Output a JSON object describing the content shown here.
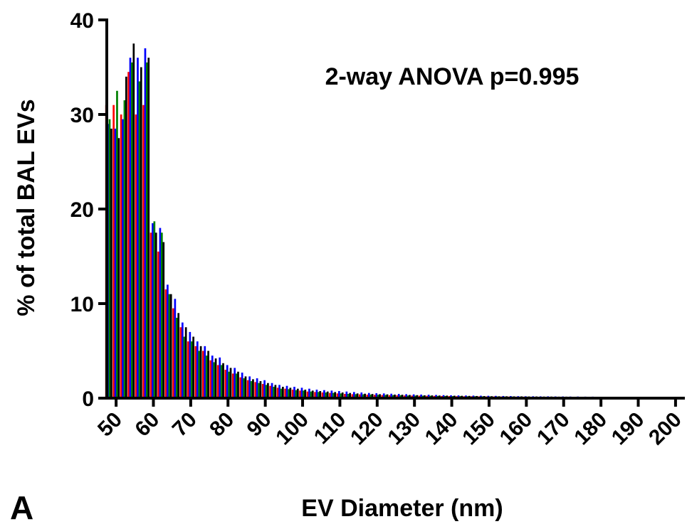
{
  "panel_label": "A",
  "chart_data": {
    "type": "bar",
    "title": "",
    "annotation": "2-way ANOVA p=0.995",
    "xlabel": "EV Diameter (nm)",
    "ylabel": "% of total BAL EVs",
    "ylim": [
      0,
      40
    ],
    "yticks": [
      0,
      10,
      20,
      30,
      40
    ],
    "xlim": [
      47.5,
      202.5
    ],
    "xticks": [
      50,
      60,
      70,
      80,
      90,
      100,
      110,
      120,
      130,
      140,
      150,
      160,
      170,
      180,
      190,
      200
    ],
    "x": [
      48,
      50,
      52,
      54,
      56,
      58,
      60,
      62,
      64,
      66,
      68,
      70,
      72,
      74,
      76,
      78,
      80,
      82,
      84,
      86,
      88,
      90,
      92,
      94,
      96,
      98,
      100,
      102,
      104,
      106,
      108,
      110,
      112,
      114,
      116,
      118,
      120,
      122,
      124,
      126,
      128,
      130,
      132,
      134,
      136,
      138,
      140,
      142,
      144,
      146,
      148,
      150,
      152,
      154,
      156,
      158,
      160,
      162,
      164,
      166,
      168,
      170,
      172,
      174,
      176,
      178,
      180,
      182,
      184,
      186,
      188,
      190,
      192,
      194,
      196,
      198,
      200
    ],
    "series_colors": [
      "#ff0000",
      "#0000ff",
      "#008000",
      "#000000"
    ],
    "series": [
      {
        "color": "#ff0000",
        "values": [
          31,
          31,
          30,
          34.5,
          30,
          31,
          17.5,
          15.5,
          11.5,
          9.5,
          7.5,
          6,
          5.5,
          5,
          4,
          3.5,
          3,
          2.6,
          2.2,
          1.9,
          1.7,
          1.5,
          1.3,
          1.1,
          1.0,
          0.9,
          0.8,
          0.7,
          0.65,
          0.6,
          0.55,
          0.5,
          0.45,
          0.42,
          0.4,
          0.37,
          0.35,
          0.33,
          0.31,
          0.3,
          0.28,
          0.27,
          0.26,
          0.25,
          0.24,
          0.23,
          0.22,
          0.21,
          0.2,
          0.2,
          0.19,
          0.18,
          0.18,
          0.17,
          0.17,
          0.16,
          0.16,
          0.15,
          0.15,
          0.14,
          0.14,
          0.14,
          0.13,
          0.13,
          0.13,
          0.12,
          0.12,
          0.12,
          0.11,
          0.11,
          0.11,
          0.1,
          0.1,
          0.1,
          0.1,
          0.1,
          0.1
        ]
      },
      {
        "color": "#0000ff",
        "values": [
          29,
          28.5,
          29.5,
          36,
          36,
          37,
          18.5,
          18,
          12,
          10.5,
          8,
          7,
          6,
          5.5,
          4.5,
          4.3,
          3.5,
          3.2,
          2.7,
          2.3,
          2.1,
          1.9,
          1.6,
          1.4,
          1.3,
          1.2,
          1.1,
          1.0,
          0.9,
          0.85,
          0.8,
          0.75,
          0.7,
          0.65,
          0.6,
          0.55,
          0.52,
          0.5,
          0.47,
          0.45,
          0.42,
          0.4,
          0.38,
          0.36,
          0.34,
          0.32,
          0.3,
          0.29,
          0.28,
          0.27,
          0.26,
          0.25,
          0.24,
          0.23,
          0.22,
          0.21,
          0.2,
          0.2,
          0.19,
          0.19,
          0.18,
          0.18,
          0.17,
          0.17,
          0.16,
          0.16,
          0.15,
          0.15,
          0.14,
          0.14,
          0.13,
          0.13,
          0.12,
          0.12,
          0.12,
          0.11,
          0.11
        ]
      },
      {
        "color": "#008000",
        "values": [
          29.5,
          32.5,
          31.5,
          35.5,
          33.5,
          35.5,
          18.7,
          17.5,
          11,
          8.5,
          6.5,
          6,
          5,
          4.5,
          3.8,
          3.5,
          2.8,
          2.6,
          2.1,
          1.8,
          1.6,
          1.4,
          1.2,
          1.0,
          0.95,
          0.85,
          0.8,
          0.7,
          0.65,
          0.6,
          0.55,
          0.5,
          0.45,
          0.42,
          0.4,
          0.38,
          0.36,
          0.34,
          0.32,
          0.3,
          0.28,
          0.27,
          0.26,
          0.25,
          0.24,
          0.23,
          0.22,
          0.21,
          0.2,
          0.2,
          0.19,
          0.18,
          0.18,
          0.17,
          0.17,
          0.16,
          0.16,
          0.15,
          0.15,
          0.14,
          0.14,
          0.14,
          0.13,
          0.13,
          0.13,
          0.12,
          0.12,
          0.12,
          0.11,
          0.11,
          0.11,
          0.1,
          0.1,
          0.1,
          0.1,
          0.1,
          0.1
        ]
      },
      {
        "color": "#000000",
        "values": [
          28.5,
          27.5,
          34,
          37.5,
          35,
          36,
          17.5,
          16.5,
          11,
          9,
          7.5,
          6.5,
          5.5,
          5,
          4.2,
          3.7,
          3.2,
          2.8,
          2.3,
          2.0,
          1.8,
          1.6,
          1.4,
          1.2,
          1.1,
          1.0,
          0.9,
          0.8,
          0.75,
          0.7,
          0.65,
          0.6,
          0.55,
          0.5,
          0.47,
          0.44,
          0.42,
          0.4,
          0.38,
          0.36,
          0.34,
          0.32,
          0.3,
          0.29,
          0.28,
          0.27,
          0.26,
          0.25,
          0.24,
          0.23,
          0.22,
          0.21,
          0.2,
          0.2,
          0.19,
          0.19,
          0.18,
          0.18,
          0.17,
          0.17,
          0.16,
          0.16,
          0.15,
          0.15,
          0.14,
          0.14,
          0.13,
          0.13,
          0.13,
          0.12,
          0.12,
          0.12,
          0.11,
          0.11,
          0.11,
          0.1,
          0.1
        ]
      }
    ]
  }
}
